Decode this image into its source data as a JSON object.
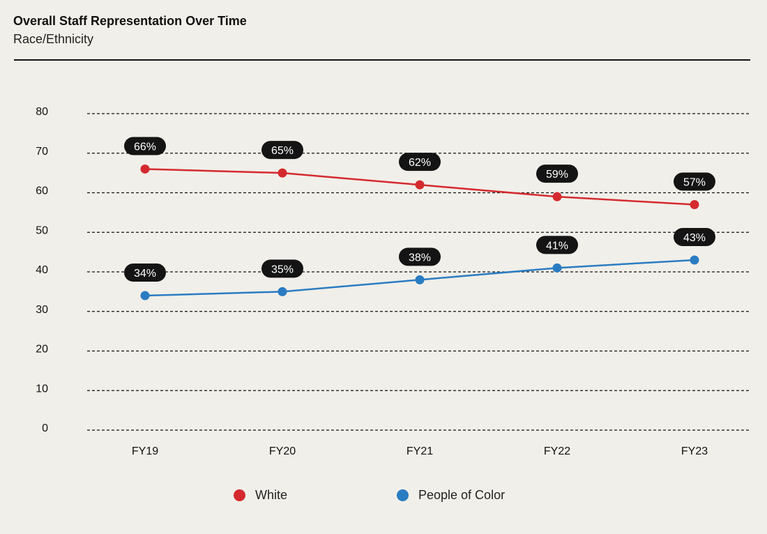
{
  "header": {
    "title": "Overall Staff Representation Over Time",
    "subtitle": "Race/Ethnicity"
  },
  "chart_data": {
    "type": "line",
    "title": "Overall Staff Representation Over Time",
    "subtitle": "Race/Ethnicity",
    "xlabel": "",
    "ylabel": "",
    "categories": [
      "FY19",
      "FY20",
      "FY21",
      "FY22",
      "FY23"
    ],
    "ylim": [
      0,
      80
    ],
    "yticks": [
      0,
      10,
      20,
      30,
      40,
      50,
      60,
      70,
      80
    ],
    "grid": true,
    "legend_position": "bottom",
    "series": [
      {
        "name": "White",
        "color": "#d42a2f",
        "values": [
          66,
          65,
          62,
          59,
          57
        ],
        "labels": [
          "66%",
          "65%",
          "62%",
          "59%",
          "57%"
        ]
      },
      {
        "name": "People of Color",
        "color": "#2a7cc2",
        "values": [
          34,
          35,
          38,
          41,
          43
        ],
        "labels": [
          "34%",
          "35%",
          "38%",
          "41%",
          "43%"
        ]
      }
    ]
  }
}
